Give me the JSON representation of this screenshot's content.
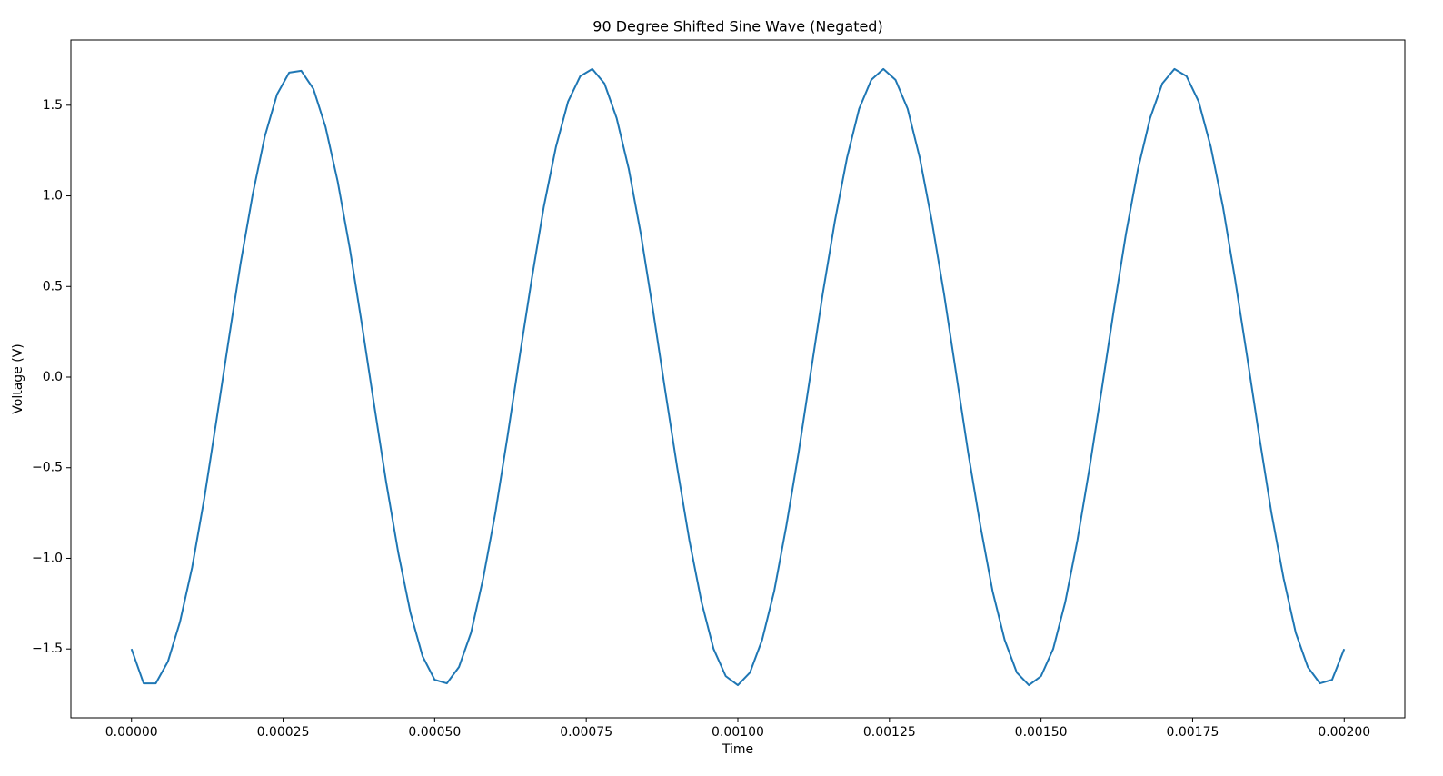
{
  "chart_data": {
    "type": "line",
    "title": "90 Degree Shifted Sine Wave (Negated)",
    "x_label": "Time",
    "y_label": "Voltage (V)",
    "color": "#1f77b4",
    "xlim": [
      -0.0001,
      0.0021
    ],
    "ylim": [
      -1.88,
      1.86
    ],
    "xticks": [
      {
        "value": 0,
        "label": "0.00000"
      },
      {
        "value": 0.00025,
        "label": "0.00025"
      },
      {
        "value": 0.0005,
        "label": "0.00050"
      },
      {
        "value": 0.00075,
        "label": "0.00075"
      },
      {
        "value": 0.001,
        "label": "0.00100"
      },
      {
        "value": 0.00125,
        "label": "0.00125"
      },
      {
        "value": 0.0015,
        "label": "0.00150"
      },
      {
        "value": 0.00175,
        "label": "0.00175"
      },
      {
        "value": 0.002,
        "label": "0.00200"
      }
    ],
    "yticks": [
      {
        "value": -1.5,
        "label": "−1.5"
      },
      {
        "value": -1,
        "label": "−1.0"
      },
      {
        "value": -0.5,
        "label": "−0.5"
      },
      {
        "value": 0,
        "label": "0.0"
      },
      0.5,
      {
        "value": 1,
        "label": "1.0"
      },
      1.5
    ],
    "x": [
      0,
      2e-05,
      4e-05,
      6e-05,
      8e-05,
      0.0001,
      0.00012,
      0.00014,
      0.00016,
      0.00018,
      0.0002,
      0.00022,
      0.00024,
      0.00026,
      0.00028,
      0.0003,
      0.00032,
      0.00034,
      0.00036,
      0.00038,
      0.0004,
      0.00042,
      0.00044,
      0.00046,
      0.00048,
      0.0005,
      0.00052,
      0.00054,
      0.00056,
      0.00058,
      0.0006,
      0.00062,
      0.00064,
      0.00066,
      0.00068,
      0.0007,
      0.00072,
      0.00074,
      0.00076,
      0.00078,
      0.0008,
      0.00082,
      0.00084,
      0.00086,
      0.00088,
      0.0009,
      0.00092,
      0.00094,
      0.00096,
      0.00098,
      0.001,
      0.00102,
      0.00104,
      0.00106,
      0.00108,
      0.0011,
      0.00112,
      0.00114,
      0.00116,
      0.00118,
      0.0012,
      0.00122,
      0.00124,
      0.00126,
      0.00128,
      0.0013,
      0.00132,
      0.00134,
      0.00136,
      0.00138,
      0.0014,
      0.00142,
      0.00144,
      0.00146,
      0.00148,
      0.0015,
      0.00152,
      0.00154,
      0.00156,
      0.00158,
      0.0016,
      0.00162,
      0.00164,
      0.00166,
      0.00168,
      0.0017,
      0.00172,
      0.00174,
      0.00176,
      0.00178,
      0.0018,
      0.00182,
      0.00184,
      0.00186,
      0.00188,
      0.0019,
      0.00192,
      0.00194,
      0.00196,
      0.00198,
      0.002
    ],
    "values": [
      -1.5,
      -1.69,
      -1.69,
      -1.57,
      -1.35,
      -1.05,
      -0.67,
      -0.24,
      0.2,
      0.63,
      1.01,
      1.33,
      1.56,
      1.68,
      1.69,
      1.59,
      1.38,
      1.08,
      0.71,
      0.29,
      -0.15,
      -0.58,
      -0.97,
      -1.3,
      -1.54,
      -1.67,
      -1.69,
      -1.6,
      -1.41,
      -1.11,
      -0.75,
      -0.33,
      0.11,
      0.54,
      0.94,
      1.27,
      1.52,
      1.66,
      1.7,
      1.62,
      1.43,
      1.15,
      0.79,
      0.37,
      -0.07,
      -0.5,
      -0.9,
      -1.24,
      -1.5,
      -1.65,
      -1.7,
      -1.63,
      -1.45,
      -1.18,
      -0.82,
      -0.42,
      0.02,
      0.46,
      0.86,
      1.21,
      1.48,
      1.64,
      1.7,
      1.64,
      1.48,
      1.21,
      0.86,
      0.46,
      0.02,
      -0.42,
      -0.82,
      -1.18,
      -1.45,
      -1.63,
      -1.7,
      -1.65,
      -1.5,
      -1.24,
      -0.9,
      -0.5,
      -0.07,
      0.37,
      0.79,
      1.15,
      1.43,
      1.62,
      1.7,
      1.66,
      1.52,
      1.27,
      0.94,
      0.54,
      0.11,
      -0.33,
      -0.75,
      -1.11,
      -1.41,
      -1.6,
      -1.69,
      -1.67,
      -1.5
    ]
  }
}
